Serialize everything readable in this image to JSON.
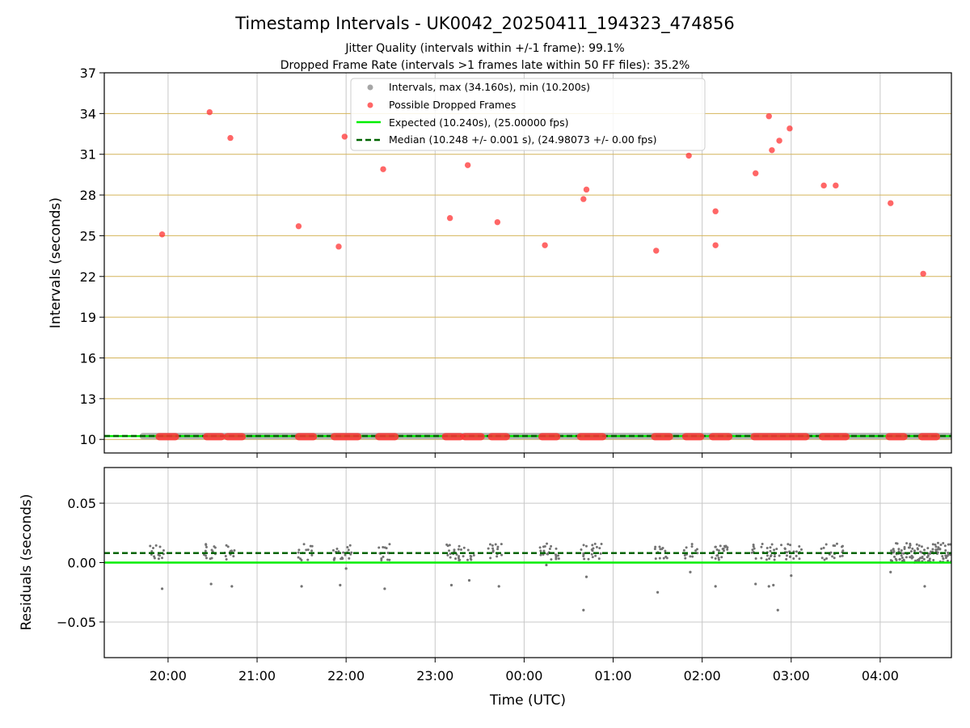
{
  "figure": {
    "title": "Timestamp Intervals - UK0042_20250411_194323_474856",
    "subtitle_1": "Jitter Quality (intervals within +/-1 frame): 99.1%",
    "subtitle_2": "Dropped Frame Rate (intervals >1 frames late within 50 FF files): 35.2%"
  },
  "colors": {
    "intervals": "#a6a6a6",
    "dropped": "#ff3333",
    "expected": "#00ee00",
    "median": "#006400",
    "grid_gold": "#d4b45a",
    "grid_gray": "#c8c8c8",
    "residual_points": "#737373"
  },
  "chart_data": [
    {
      "type": "scatter",
      "ylabel": "Intervals (seconds)",
      "ylim": [
        9,
        37
      ],
      "yticks": [
        10,
        13,
        16,
        19,
        22,
        25,
        28,
        31,
        34,
        37
      ],
      "xlim": [
        "19:17",
        "04:48"
      ],
      "grid": "on",
      "legend_placement": "top-center",
      "legend": [
        "Intervals, max (34.160s), min (10.200s)",
        "Possible Dropped Frames",
        "Expected (10.240s), (25.00000 fps)",
        "Median (10.248 +/- 0.001 s), (24.98073 +/- 0.00 fps)"
      ],
      "expected_value": 10.24,
      "median_value": 10.248,
      "intervals_span": [
        [
          "19:43",
          "04:48"
        ]
      ],
      "dropped_points": [
        {
          "x": "19:56",
          "y": 25.1
        },
        {
          "x": "20:28",
          "y": 34.1
        },
        {
          "x": "20:42",
          "y": 32.2
        },
        {
          "x": "21:28",
          "y": 25.7
        },
        {
          "x": "21:55",
          "y": 24.2
        },
        {
          "x": "21:59",
          "y": 32.3
        },
        {
          "x": "22:25",
          "y": 29.9
        },
        {
          "x": "23:10",
          "y": 26.3
        },
        {
          "x": "23:22",
          "y": 30.2
        },
        {
          "x": "23:42",
          "y": 26.0
        },
        {
          "x": "00:14",
          "y": 24.3
        },
        {
          "x": "00:40",
          "y": 27.7
        },
        {
          "x": "00:42",
          "y": 28.4
        },
        {
          "x": "01:29",
          "y": 23.9
        },
        {
          "x": "01:51",
          "y": 30.9
        },
        {
          "x": "02:09",
          "y": 24.3
        },
        {
          "x": "02:09",
          "y": 26.8
        },
        {
          "x": "02:36",
          "y": 29.6
        },
        {
          "x": "02:45",
          "y": 33.8
        },
        {
          "x": "02:47",
          "y": 31.3
        },
        {
          "x": "02:52",
          "y": 32.0
        },
        {
          "x": "02:59",
          "y": 32.9
        },
        {
          "x": "03:22",
          "y": 28.7
        },
        {
          "x": "03:30",
          "y": 28.7
        },
        {
          "x": "04:07",
          "y": 27.4
        },
        {
          "x": "04:29",
          "y": 22.2
        }
      ],
      "dropped_baseline_segments": [
        [
          "19:54",
          "20:05"
        ],
        [
          "20:26",
          "20:36"
        ],
        [
          "20:40",
          "20:50"
        ],
        [
          "21:28",
          "21:38"
        ],
        [
          "21:52",
          "22:08"
        ],
        [
          "22:22",
          "22:33"
        ],
        [
          "23:07",
          "23:17"
        ],
        [
          "23:20",
          "23:31"
        ],
        [
          "23:38",
          "23:48"
        ],
        [
          "00:12",
          "00:22"
        ],
        [
          "00:38",
          "00:53"
        ],
        [
          "01:28",
          "01:38"
        ],
        [
          "01:49",
          "01:59"
        ],
        [
          "02:07",
          "02:18"
        ],
        [
          "02:35",
          "03:10"
        ],
        [
          "03:21",
          "03:37"
        ],
        [
          "04:06",
          "04:16"
        ],
        [
          "04:28",
          "04:38"
        ]
      ],
      "dropped_baseline_value": 10.2
    },
    {
      "type": "scatter",
      "xlabel": "Time (UTC)",
      "ylabel": "Residuals (seconds)",
      "ylim": [
        -0.08,
        0.08
      ],
      "yticks": [
        -0.05,
        0.0,
        0.05
      ],
      "ytick_labels": [
        "−0.05",
        "0.00",
        "0.05"
      ],
      "xticks": [
        "20:00",
        "21:00",
        "22:00",
        "23:00",
        "00:00",
        "01:00",
        "02:00",
        "03:00",
        "04:00"
      ],
      "xlim": [
        "19:17",
        "04:48"
      ],
      "grid": "on",
      "expected_value": 0.0,
      "median_value": 0.008,
      "cluster_times": [
        "19:50",
        "19:55",
        "20:25",
        "20:30",
        "20:40",
        "20:44",
        "21:30",
        "21:35",
        "21:53",
        "21:58",
        "22:02",
        "22:24",
        "22:28",
        "23:09",
        "23:14",
        "23:18",
        "23:24",
        "23:38",
        "23:43",
        "00:12",
        "00:17",
        "00:23",
        "00:40",
        "00:45",
        "00:50",
        "01:30",
        "01:35",
        "01:50",
        "01:55",
        "02:08",
        "02:12",
        "02:16",
        "02:35",
        "02:42",
        "02:46",
        "02:50",
        "02:55",
        "03:00",
        "03:05",
        "03:22",
        "03:28",
        "03:33"
      ],
      "outliers": [
        {
          "x": "19:56",
          "y": -0.022
        },
        {
          "x": "20:29",
          "y": -0.018
        },
        {
          "x": "20:43",
          "y": -0.02
        },
        {
          "x": "21:30",
          "y": -0.02
        },
        {
          "x": "21:56",
          "y": -0.019
        },
        {
          "x": "22:00",
          "y": -0.005
        },
        {
          "x": "22:26",
          "y": -0.022
        },
        {
          "x": "23:11",
          "y": -0.019
        },
        {
          "x": "23:23",
          "y": -0.015
        },
        {
          "x": "23:43",
          "y": -0.02
        },
        {
          "x": "00:15",
          "y": -0.002
        },
        {
          "x": "00:40",
          "y": -0.04
        },
        {
          "x": "00:42",
          "y": -0.012
        },
        {
          "x": "01:30",
          "y": -0.025
        },
        {
          "x": "01:52",
          "y": -0.008
        },
        {
          "x": "02:09",
          "y": -0.02
        },
        {
          "x": "02:36",
          "y": -0.018
        },
        {
          "x": "02:45",
          "y": -0.02
        },
        {
          "x": "02:48",
          "y": -0.019
        },
        {
          "x": "02:51",
          "y": -0.04
        },
        {
          "x": "03:00",
          "y": -0.011
        },
        {
          "x": "04:07",
          "y": -0.008
        },
        {
          "x": "04:30",
          "y": -0.02
        }
      ],
      "dense_band": {
        "start": "04:07",
        "end": "04:48",
        "y_min": 0.0,
        "y_max": 0.017
      }
    }
  ]
}
